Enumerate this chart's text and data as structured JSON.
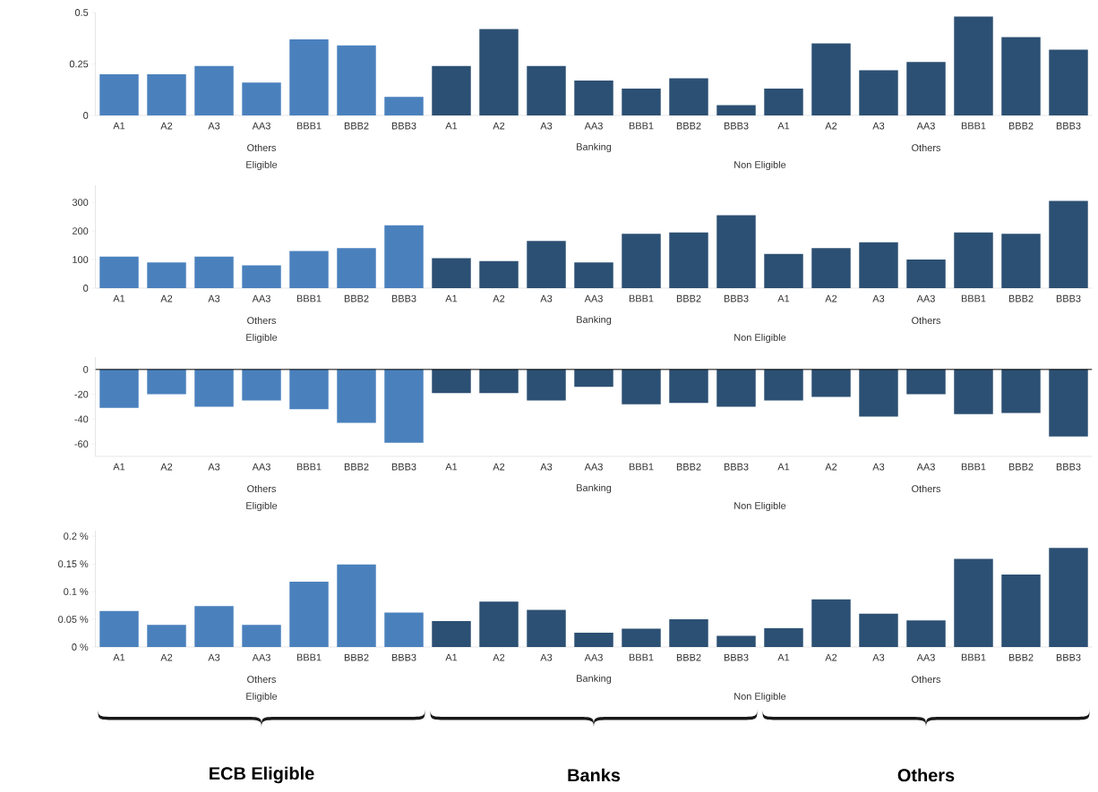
{
  "chart_data": [
    {
      "type": "bar",
      "categories": [
        "A1",
        "A2",
        "A3",
        "AA3",
        "BBB1",
        "BBB2",
        "BBB3",
        "A1",
        "A2",
        "A3",
        "AA3",
        "BBB1",
        "BBB2",
        "BBB3",
        "A1",
        "A2",
        "A3",
        "AA3",
        "BBB1",
        "BBB2",
        "BBB3"
      ],
      "values": [
        0.2,
        0.2,
        0.24,
        0.16,
        0.37,
        0.34,
        0.09,
        0.24,
        0.42,
        0.24,
        0.17,
        0.13,
        0.18,
        0.05,
        0.13,
        0.35,
        0.22,
        0.26,
        0.48,
        0.38,
        0.32
      ],
      "colors": [
        "#4a81bd",
        "#4a81bd",
        "#4a81bd",
        "#4a81bd",
        "#4a81bd",
        "#4a81bd",
        "#4a81bd",
        "#2c5073",
        "#2c5073",
        "#2c5073",
        "#2c5073",
        "#2c5073",
        "#2c5073",
        "#2c5073",
        "#2c5073",
        "#2c5073",
        "#2c5073",
        "#2c5073",
        "#2c5073",
        "#2c5073",
        "#2c5073"
      ],
      "ylim": [
        0,
        0.5
      ],
      "yticks": [
        0,
        0.25,
        0.5
      ],
      "annotations": [
        "Others",
        "Banking",
        "Others",
        "Eligible",
        "Non Eligible"
      ]
    },
    {
      "type": "bar",
      "categories": [
        "A1",
        "A2",
        "A3",
        "AA3",
        "BBB1",
        "BBB2",
        "BBB3",
        "A1",
        "A2",
        "A3",
        "AA3",
        "BBB1",
        "BBB2",
        "BBB3",
        "A1",
        "A2",
        "A3",
        "AA3",
        "BBB1",
        "BBB2",
        "BBB3"
      ],
      "values": [
        110,
        90,
        110,
        80,
        130,
        140,
        220,
        105,
        95,
        165,
        90,
        190,
        195,
        255,
        120,
        140,
        160,
        100,
        195,
        190,
        305
      ],
      "colors": [
        "#4a81bd",
        "#4a81bd",
        "#4a81bd",
        "#4a81bd",
        "#4a81bd",
        "#4a81bd",
        "#4a81bd",
        "#2c5073",
        "#2c5073",
        "#2c5073",
        "#2c5073",
        "#2c5073",
        "#2c5073",
        "#2c5073",
        "#2c5073",
        "#2c5073",
        "#2c5073",
        "#2c5073",
        "#2c5073",
        "#2c5073",
        "#2c5073"
      ],
      "ylim": [
        0,
        360
      ],
      "yticks": [
        0,
        100,
        200,
        300
      ],
      "annotations": [
        "Others",
        "Banking",
        "Others",
        "Eligible",
        "Non Eligible"
      ]
    },
    {
      "type": "bar",
      "categories": [
        "A1",
        "A2",
        "A3",
        "AA3",
        "BBB1",
        "BBB2",
        "BBB3",
        "A1",
        "A2",
        "A3",
        "AA3",
        "BBB1",
        "BBB2",
        "BBB3",
        "A1",
        "A2",
        "A3",
        "AA3",
        "BBB1",
        "BBB2",
        "BBB3"
      ],
      "values": [
        -31,
        -20,
        -30,
        -25,
        -32,
        -43,
        -59,
        -19,
        -19,
        -25,
        -14,
        -28,
        -27,
        -30,
        -25,
        -22,
        -38,
        -20,
        -36,
        -35,
        -54
      ],
      "colors": [
        "#4a81bd",
        "#4a81bd",
        "#4a81bd",
        "#4a81bd",
        "#4a81bd",
        "#4a81bd",
        "#4a81bd",
        "#2c5073",
        "#2c5073",
        "#2c5073",
        "#2c5073",
        "#2c5073",
        "#2c5073",
        "#2c5073",
        "#2c5073",
        "#2c5073",
        "#2c5073",
        "#2c5073",
        "#2c5073",
        "#2c5073",
        "#2c5073"
      ],
      "ylim": [
        -70,
        10
      ],
      "yticks": [
        -60,
        -40,
        -20,
        0
      ],
      "ref_lines": [
        {
          "axis": "y",
          "value": 0,
          "color": "#000000"
        }
      ],
      "annotations": [
        "Others",
        "Banking",
        "Others",
        "Eligible",
        "Non Eligible"
      ]
    },
    {
      "type": "bar",
      "categories": [
        "A1",
        "A2",
        "A3",
        "AA3",
        "BBB1",
        "BBB2",
        "BBB3",
        "A1",
        "A2",
        "A3",
        "AA3",
        "BBB1",
        "BBB2",
        "BBB3",
        "A1",
        "A2",
        "A3",
        "AA3",
        "BBB1",
        "BBB2",
        "BBB3"
      ],
      "values": [
        0.065,
        0.04,
        0.074,
        0.04,
        0.118,
        0.149,
        0.062,
        0.047,
        0.082,
        0.067,
        0.026,
        0.033,
        0.05,
        0.02,
        0.034,
        0.086,
        0.06,
        0.048,
        0.159,
        0.131,
        0.179
      ],
      "colors": [
        "#4a81bd",
        "#4a81bd",
        "#4a81bd",
        "#4a81bd",
        "#4a81bd",
        "#4a81bd",
        "#4a81bd",
        "#2c5073",
        "#2c5073",
        "#2c5073",
        "#2c5073",
        "#2c5073",
        "#2c5073",
        "#2c5073",
        "#2c5073",
        "#2c5073",
        "#2c5073",
        "#2c5073",
        "#2c5073",
        "#2c5073",
        "#2c5073"
      ],
      "ylim": [
        0,
        0.21
      ],
      "yticks": [
        {
          "value": 0,
          "label": "0 %"
        },
        {
          "value": 0.05,
          "label": "0.05 %"
        },
        {
          "value": 0.1,
          "label": "0.1 %"
        },
        {
          "value": 0.15,
          "label": "0.15 %"
        },
        {
          "value": 0.2,
          "label": "0.2 %"
        }
      ],
      "annotations": [
        "Others",
        "Banking",
        "Others",
        "Eligible",
        "Non Eligible",
        "ECB Eligible",
        "Banks",
        "Others"
      ]
    }
  ]
}
